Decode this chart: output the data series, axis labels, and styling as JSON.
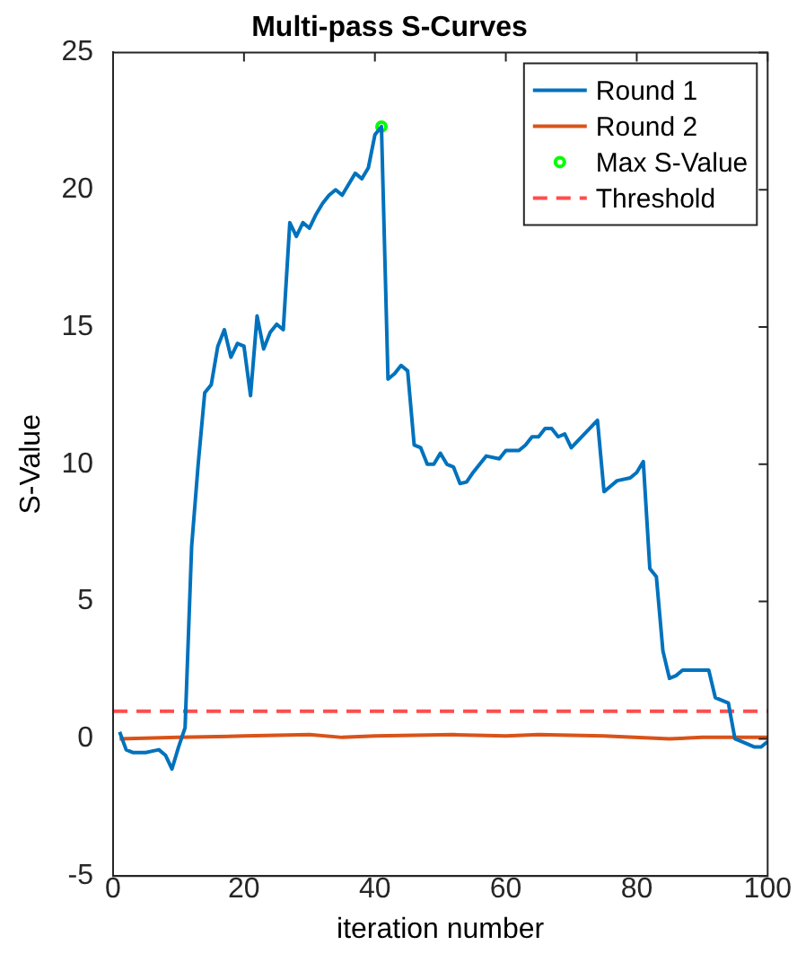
{
  "chart_data": {
    "type": "line",
    "title": "Multi-pass S-Curves",
    "xlabel": "iteration number",
    "ylabel": "S-Value",
    "xlim": [
      0,
      100
    ],
    "xticks": [
      0,
      20,
      40,
      60,
      80,
      100
    ],
    "ylim": [
      -5,
      25
    ],
    "yticks": [
      -5,
      0,
      5,
      10,
      15,
      20,
      25
    ],
    "grid": false,
    "legend": "top right",
    "series": [
      {
        "name": "Round 1",
        "type": "line",
        "color": "#0072bd",
        "x": [
          1,
          2,
          3,
          4,
          5,
          6,
          7,
          8,
          9,
          10,
          11,
          12,
          13,
          14,
          15,
          16,
          17,
          18,
          19,
          20,
          21,
          22,
          23,
          24,
          25,
          26,
          27,
          28,
          29,
          30,
          31,
          32,
          33,
          34,
          35,
          36,
          37,
          38,
          39,
          40,
          41,
          42,
          43,
          44,
          45,
          46,
          47,
          48,
          49,
          50,
          51,
          52,
          53,
          54,
          55,
          57,
          59,
          60,
          62,
          63,
          64,
          65,
          66,
          67,
          68,
          69,
          70,
          74,
          75,
          76,
          77,
          79,
          80,
          81,
          82,
          83,
          84,
          85,
          86,
          87,
          89,
          91,
          92,
          94,
          95,
          96,
          98,
          99,
          100
        ],
        "values": [
          0.25,
          -0.4,
          -0.5,
          -0.5,
          -0.5,
          -0.45,
          -0.4,
          -0.6,
          -1.1,
          -0.3,
          0.4,
          7,
          10,
          12.6,
          12.9,
          14.3,
          14.9,
          13.9,
          14.4,
          14.3,
          12.5,
          15.4,
          14.2,
          14.8,
          15.1,
          14.9,
          18.8,
          18.3,
          18.8,
          18.6,
          19.1,
          19.5,
          19.8,
          20.0,
          19.8,
          20.2,
          20.6,
          20.4,
          20.8,
          22.0,
          22.3,
          13.1,
          13.3,
          13.6,
          13.4,
          10.7,
          10.6,
          10.0,
          10.0,
          10.4,
          10.0,
          9.9,
          9.3,
          9.35,
          9.7,
          10.3,
          10.2,
          10.5,
          10.5,
          10.7,
          11.0,
          11.0,
          11.3,
          11.3,
          11.0,
          11.1,
          10.6,
          11.6,
          9.0,
          9.2,
          9.4,
          9.5,
          9.7,
          10.1,
          6.2,
          5.9,
          3.2,
          2.2,
          2.3,
          2.5,
          2.5,
          2.5,
          1.5,
          1.3,
          0.0,
          -0.1,
          -0.3,
          -0.3,
          -0.1
        ]
      },
      {
        "name": "Round 2",
        "type": "line",
        "color": "#d95319",
        "x": [
          1,
          10,
          20,
          30,
          35,
          40,
          52,
          60,
          65,
          75,
          85,
          90,
          100
        ],
        "values": [
          0.0,
          0.05,
          0.1,
          0.15,
          0.05,
          0.1,
          0.15,
          0.1,
          0.15,
          0.1,
          0.0,
          0.05,
          0.05
        ]
      },
      {
        "name": "Max S-Value",
        "type": "scatter",
        "color": "#00ff00",
        "marker": "circle",
        "x": [
          41
        ],
        "values": [
          22.3
        ]
      }
    ],
    "ref_lines": [
      {
        "axis": "y",
        "value": 1,
        "label": "Threshold",
        "color": "#ff4d4d",
        "line_style": "dashed"
      }
    ]
  }
}
